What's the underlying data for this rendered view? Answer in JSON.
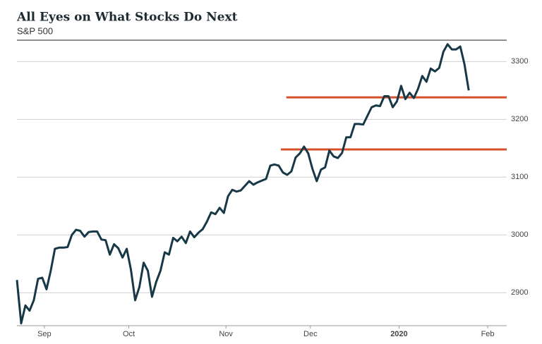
{
  "chart_data": {
    "type": "line",
    "title": "All Eyes on What Stocks Do Next",
    "subtitle": "S&P 500",
    "series": [
      {
        "name": "S&P 500",
        "color": "#173847",
        "values": [
          2922,
          2847,
          2878,
          2869,
          2887,
          2924,
          2926,
          2906,
          2938,
          2976,
          2978,
          2978,
          2979,
          3000,
          3009,
          3007,
          2997,
          3005,
          3006,
          3006,
          2992,
          2991,
          2966,
          2984,
          2977,
          2961,
          2976,
          2940,
          2887,
          2910,
          2952,
          2938,
          2893,
          2919,
          2938,
          2970,
          2966,
          2995,
          2989,
          2997,
          2986,
          3006,
          2996,
          3004,
          3010,
          3023,
          3039,
          3036,
          3047,
          3038,
          3067,
          3078,
          3075,
          3077,
          3085,
          3093,
          3087,
          3091,
          3094,
          3097,
          3120,
          3122,
          3120,
          3108,
          3104,
          3110,
          3134,
          3141,
          3153,
          3141,
          3114,
          3093,
          3113,
          3117,
          3146,
          3136,
          3133,
          3142,
          3169,
          3169,
          3192,
          3192,
          3191,
          3206,
          3221,
          3224,
          3223,
          3240,
          3240,
          3221,
          3231,
          3258,
          3235,
          3246,
          3237,
          3253,
          3275,
          3265,
          3288,
          3283,
          3289,
          3317,
          3330,
          3321,
          3321,
          3326,
          3295,
          3250
        ]
      }
    ],
    "xlim": [
      0,
      116
    ],
    "xticks": [
      {
        "value": 6.5,
        "label": "Sep"
      },
      {
        "value": 26.5,
        "label": "Oct"
      },
      {
        "value": 49.5,
        "label": "Nov"
      },
      {
        "value": 69.5,
        "label": "Dec"
      },
      {
        "value": 90.5,
        "label": "2020"
      },
      {
        "value": 111.5,
        "label": "Feb"
      }
    ],
    "ylim": [
      2843,
      3337
    ],
    "yticks": [
      2900,
      3000,
      3100,
      3200,
      3300
    ],
    "grid": true,
    "reference_lines": [
      {
        "value": 3238,
        "from": 63.8,
        "color": "#d4512b"
      },
      {
        "value": 3148,
        "from": 62.5,
        "color": "#d4512b"
      }
    ]
  }
}
